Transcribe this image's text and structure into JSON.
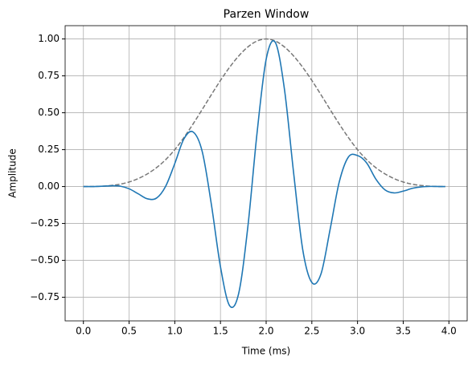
{
  "chart_data": {
    "type": "line",
    "title": "Parzen Window",
    "xlabel": "Time (ms)",
    "ylabel": "Amplitude",
    "x": [
      0,
      0.1,
      0.2,
      0.3,
      0.4,
      0.5,
      0.6,
      0.7,
      0.8,
      0.9,
      1.0,
      1.1,
      1.2,
      1.3,
      1.4,
      1.5,
      1.6,
      1.7,
      1.8,
      1.9,
      2.0,
      2.1,
      2.2,
      2.3,
      2.4,
      2.5,
      2.6,
      2.7,
      2.8,
      2.9,
      3.0,
      3.1,
      3.2,
      3.3,
      3.4,
      3.5,
      3.6,
      3.7,
      3.8,
      3.9,
      3.96
    ],
    "series": [
      {
        "color": "#777777",
        "dashed": true,
        "values": [
          0,
          0.0003,
          0.002,
          0.007,
          0.016,
          0.031,
          0.054,
          0.086,
          0.128,
          0.182,
          0.25,
          0.332,
          0.424,
          0.522,
          0.622,
          0.719,
          0.808,
          0.885,
          0.946,
          0.986,
          1.0,
          0.986,
          0.946,
          0.885,
          0.808,
          0.719,
          0.622,
          0.522,
          0.424,
          0.332,
          0.25,
          0.182,
          0.128,
          0.086,
          0.054,
          0.031,
          0.016,
          0.007,
          0.002,
          0.0003,
          0
        ]
      },
      {
        "color": "#1f77b4",
        "dashed": false,
        "values": [
          0,
          0,
          0.002,
          0.005,
          0.003,
          -0.015,
          -0.049,
          -0.083,
          -0.078,
          0.002,
          0.156,
          0.323,
          0.37,
          0.238,
          -0.119,
          -0.543,
          -0.807,
          -0.722,
          -0.271,
          0.361,
          0.862,
          0.977,
          0.66,
          0.096,
          -0.426,
          -0.65,
          -0.592,
          -0.29,
          0.031,
          0.2,
          0.21,
          0.16,
          0.051,
          -0.022,
          -0.043,
          -0.031,
          -0.012,
          -0.002,
          0.001,
          0,
          0
        ]
      }
    ],
    "xlim": [
      -0.2,
      4.2
    ],
    "ylim": [
      -0.91,
      1.09
    ],
    "xticks": [
      {
        "value": 0,
        "label": "0.0"
      },
      {
        "value": 0.5,
        "label": "0.5"
      },
      {
        "value": 1,
        "label": "1.0"
      },
      {
        "value": 1.5,
        "label": "1.5"
      },
      {
        "value": 2,
        "label": "2.0"
      },
      {
        "value": 2.5,
        "label": "2.5"
      },
      {
        "value": 3,
        "label": "3.0"
      },
      {
        "value": 3.5,
        "label": "3.5"
      },
      {
        "value": 4,
        "label": "4.0"
      }
    ],
    "yticks": [
      {
        "value": -0.75,
        "label": "−0.75"
      },
      {
        "value": -0.5,
        "label": "−0.50"
      },
      {
        "value": -0.25,
        "label": "−0.25"
      },
      {
        "value": 0,
        "label": "0.00"
      },
      {
        "value": 0.25,
        "label": "0.25"
      },
      {
        "value": 0.5,
        "label": "0.50"
      },
      {
        "value": 0.75,
        "label": "0.75"
      },
      {
        "value": 1,
        "label": "1.00"
      }
    ],
    "grid": true
  }
}
